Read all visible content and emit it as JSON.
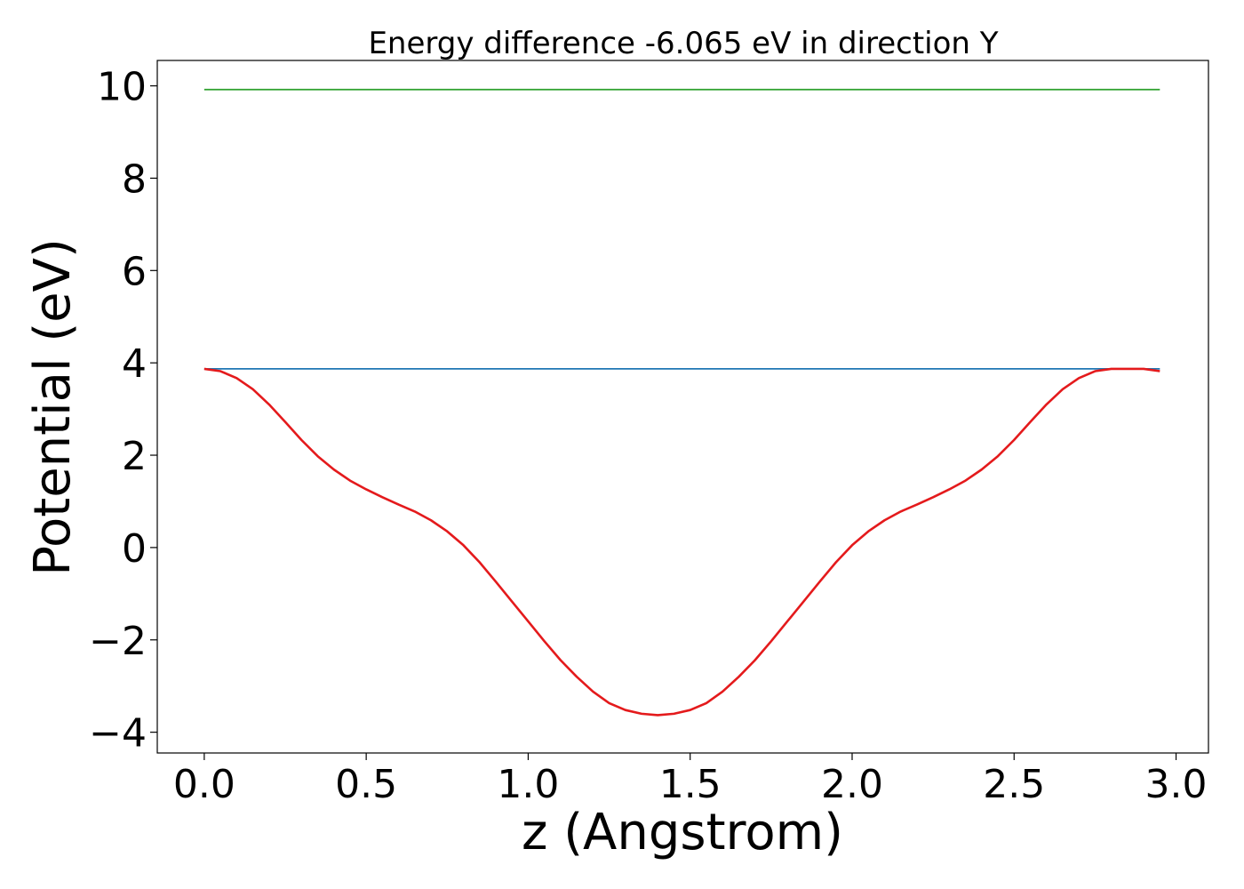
{
  "chart_data": {
    "type": "line",
    "title": "Energy difference -6.065 eV in direction Y",
    "xlabel": "z (Angstrom)",
    "ylabel": "Potential (eV)",
    "xlim": [
      -0.145,
      3.1
    ],
    "ylim": [
      -4.45,
      10.55
    ],
    "xticks": [
      0.0,
      0.5,
      1.0,
      1.5,
      2.0,
      2.5,
      3.0
    ],
    "xtick_labels": [
      "0.0",
      "0.5",
      "1.0",
      "1.5",
      "2.0",
      "2.5",
      "3.0"
    ],
    "yticks": [
      -4,
      -2,
      0,
      2,
      4,
      6,
      8,
      10
    ],
    "ytick_labels": [
      "−4",
      "−2",
      "0",
      "2",
      "4",
      "6",
      "8",
      "10"
    ],
    "grid": false,
    "series": [
      {
        "color": "#2ca02c",
        "x": [
          0.0,
          2.95
        ],
        "values": [
          9.92,
          9.92
        ]
      },
      {
        "color": "#1f77b4",
        "x": [
          0.0,
          2.95
        ],
        "values": [
          3.87,
          3.87
        ]
      },
      {
        "color": "#e41a1c",
        "x": [
          0.0,
          0.05,
          0.1,
          0.15,
          0.2,
          0.25,
          0.3,
          0.35,
          0.4,
          0.45,
          0.5,
          0.55,
          0.6,
          0.65,
          0.7,
          0.75,
          0.8,
          0.85,
          0.9,
          0.95,
          1.0,
          1.05,
          1.1,
          1.15,
          1.2,
          1.25,
          1.3,
          1.35,
          1.4,
          1.45,
          1.5,
          1.55,
          1.6,
          1.65,
          1.7,
          1.75,
          1.8,
          1.85,
          1.9,
          1.95,
          2.0,
          2.05,
          2.1,
          2.15,
          2.2,
          2.25,
          2.3,
          2.35,
          2.4,
          2.45,
          2.5,
          2.55,
          2.6,
          2.65,
          2.7,
          2.75,
          2.8,
          2.85,
          2.9,
          2.95
        ],
        "values": [
          3.87,
          3.82,
          3.67,
          3.43,
          3.1,
          2.72,
          2.33,
          1.98,
          1.69,
          1.45,
          1.26,
          1.09,
          0.93,
          0.78,
          0.59,
          0.35,
          0.05,
          -0.32,
          -0.74,
          -1.17,
          -1.6,
          -2.03,
          -2.44,
          -2.8,
          -3.12,
          -3.37,
          -3.52,
          -3.6,
          -3.63,
          -3.6,
          -3.52,
          -3.37,
          -3.12,
          -2.8,
          -2.44,
          -2.03,
          -1.6,
          -1.17,
          -0.74,
          -0.32,
          0.05,
          0.35,
          0.59,
          0.78,
          0.93,
          1.09,
          1.26,
          1.45,
          1.69,
          1.98,
          2.33,
          2.72,
          3.1,
          3.43,
          3.67,
          3.82,
          3.87,
          3.87,
          3.87,
          3.82
        ]
      }
    ]
  }
}
